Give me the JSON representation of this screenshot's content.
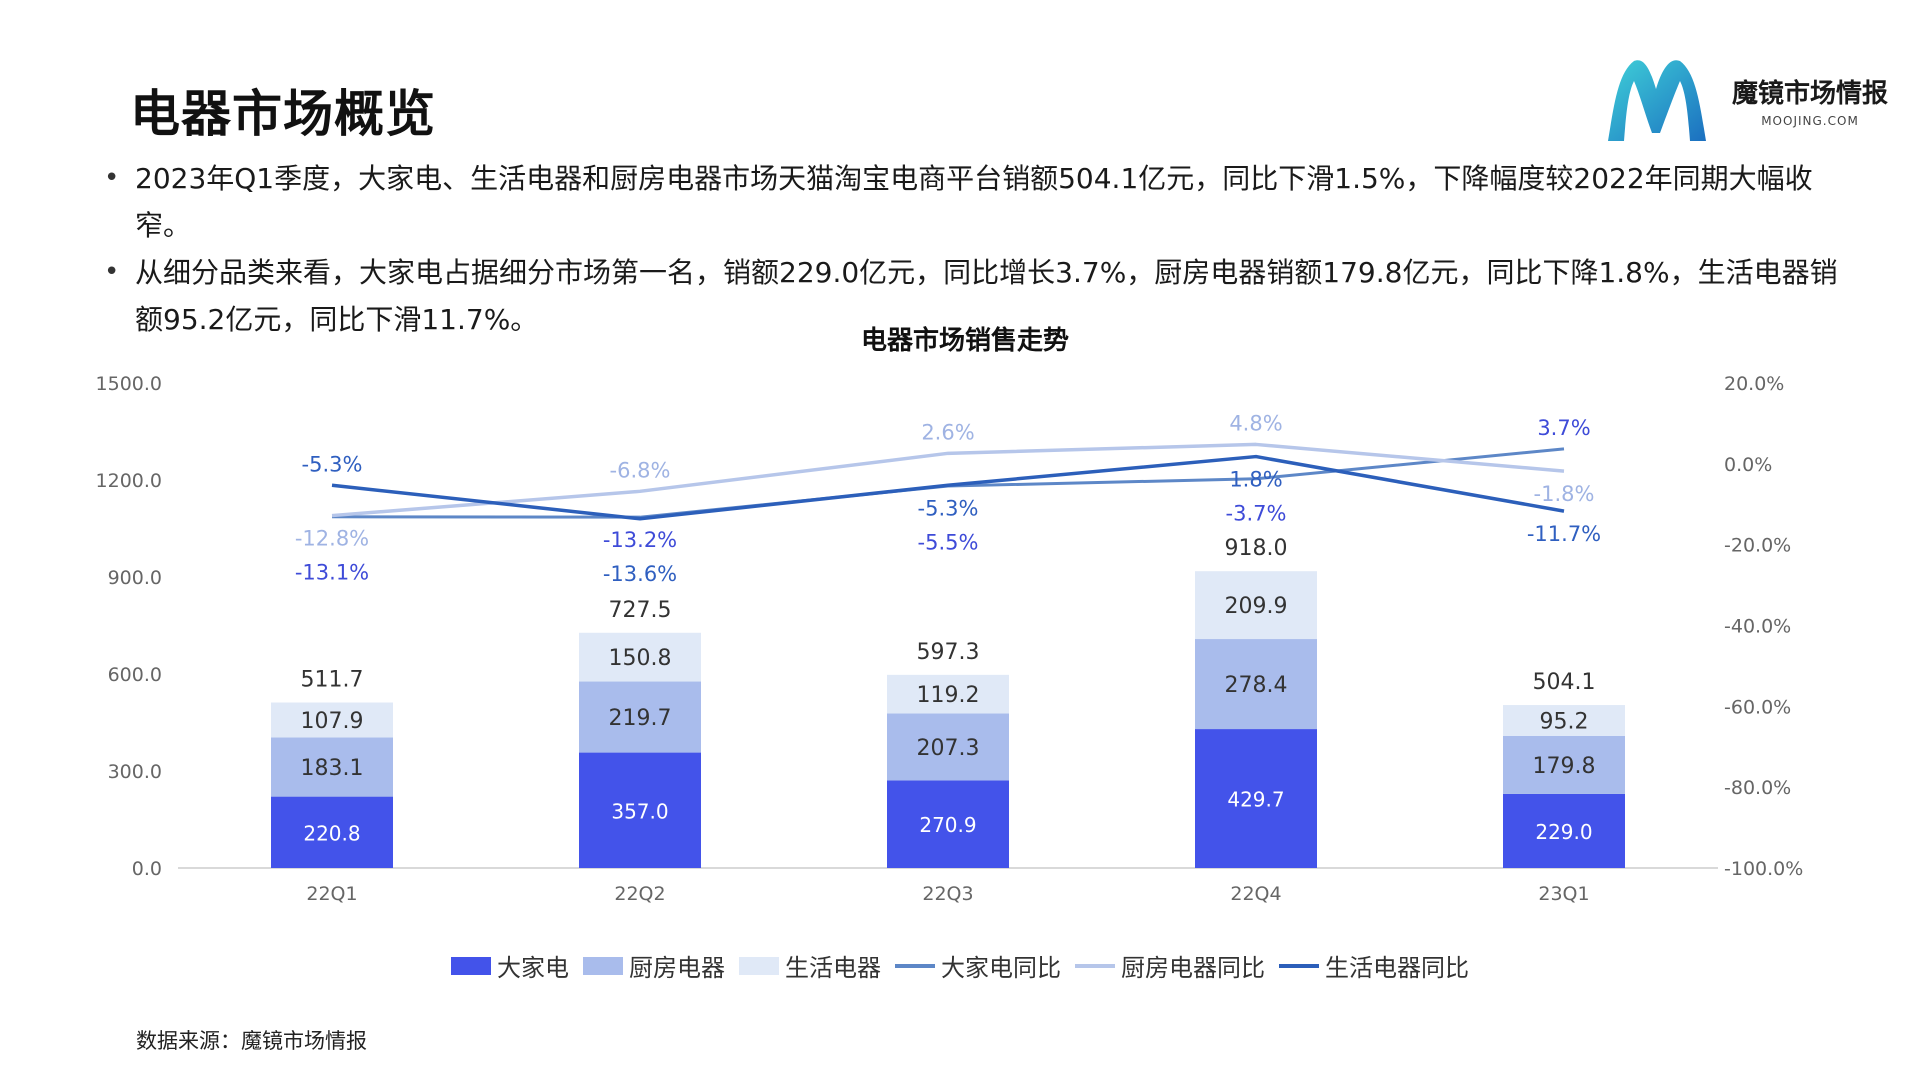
{
  "header": {
    "title": "电器市场概览",
    "logo_name": "魔镜市场情报",
    "logo_domain": "MOOJING.COM"
  },
  "bullets": [
    "2023年Q1季度，大家电、生活电器和厨房电器市场天猫淘宝电商平台销额504.1亿元，同比下滑1.5%，下降幅度较2022年同期大幅收窄。",
    "从细分品类来看，大家电占据细分市场第一名，销额229.0亿元，同比增长3.7%，厨房电器销额179.8亿元，同比下降1.8%，生活电器销额95.2亿元，同比下滑11.7%。"
  ],
  "source": "数据来源：魔镜市场情报",
  "colors": {
    "major": "#4353ea",
    "kitchen": "#a9bcec",
    "living": "#e0e9f7",
    "major_line": "#5d87c7",
    "kitchen_line": "#b6c6ea",
    "living_line": "#2c5fba"
  },
  "chart_data": {
    "type": "bar",
    "title": "电器市场销售走势",
    "categories": [
      "22Q1",
      "22Q2",
      "22Q3",
      "22Q4",
      "23Q1"
    ],
    "left_axis": {
      "min": 0,
      "max": 1500,
      "ticks": [
        "0.0",
        "300.0",
        "600.0",
        "900.0",
        "1200.0",
        "1500.0"
      ]
    },
    "right_axis": {
      "min": -100,
      "max": 20,
      "ticks": [
        "-100.0%",
        "-80.0%",
        "-60.0%",
        "-40.0%",
        "-20.0%",
        "0.0%",
        "20.0%"
      ]
    },
    "totals": [
      511.7,
      727.5,
      597.3,
      918.0,
      504.1
    ],
    "total_labels": [
      "511.7",
      "727.5",
      "597.3",
      "918.0",
      "504.1"
    ],
    "series": [
      {
        "name": "大家电",
        "kind": "bar",
        "values": [
          220.8,
          357.0,
          270.9,
          429.7,
          229.0
        ],
        "labels": [
          "220.8",
          "357.0",
          "270.9",
          "429.7",
          "229.0"
        ]
      },
      {
        "name": "厨房电器",
        "kind": "bar",
        "values": [
          183.1,
          219.7,
          207.3,
          278.4,
          179.8
        ],
        "labels": [
          "183.1",
          "219.7",
          "207.3",
          "278.4",
          "179.8"
        ]
      },
      {
        "name": "生活电器",
        "kind": "bar",
        "values": [
          107.9,
          150.8,
          119.2,
          209.9,
          95.2
        ],
        "labels": [
          "107.9",
          "150.8",
          "119.2",
          "209.9",
          "95.2"
        ]
      },
      {
        "name": "大家电同比",
        "kind": "line",
        "values": [
          -13.1,
          -13.2,
          -5.5,
          -3.7,
          3.7
        ],
        "labels": [
          "-13.1%",
          "-13.2%",
          "-5.5%",
          "-3.7%",
          "3.7%"
        ]
      },
      {
        "name": "厨房电器同比",
        "kind": "line",
        "values": [
          -12.8,
          -6.8,
          2.6,
          4.8,
          -1.8
        ],
        "labels": [
          "-12.8%",
          "-6.8%",
          "2.6%",
          "4.8%",
          "-1.8%"
        ]
      },
      {
        "name": "生活电器同比",
        "kind": "line",
        "values": [
          -5.3,
          -13.6,
          -5.3,
          1.8,
          -11.7
        ],
        "labels": [
          "-5.3%",
          "-13.6%",
          "-5.3%",
          "1.8%",
          "-11.7%"
        ]
      }
    ],
    "legend": [
      "大家电",
      "厨房电器",
      "生活电器",
      "大家电同比",
      "厨房电器同比",
      "生活电器同比"
    ],
    "legend_position": "bottom",
    "grid": false
  }
}
